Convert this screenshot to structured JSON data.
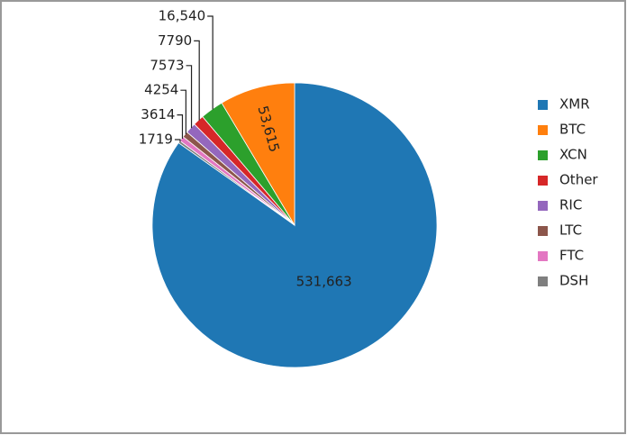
{
  "chart_data": {
    "type": "pie",
    "categories": [
      "XMR",
      "BTC",
      "XCN",
      "Other",
      "RIC",
      "LTC",
      "FTC",
      "DSH"
    ],
    "values": [
      531663,
      53615,
      16540,
      7790,
      7573,
      4254,
      3614,
      1719
    ],
    "value_labels": [
      "531,663",
      "53,615",
      "16,540",
      "7790",
      "7573",
      "4254",
      "3614",
      "1719"
    ],
    "colors": [
      "#1f77b4",
      "#ff7f0e",
      "#2ca02c",
      "#d62728",
      "#9467bd",
      "#8c564b",
      "#e377c2",
      "#7f7f7f"
    ],
    "legend": "right"
  }
}
